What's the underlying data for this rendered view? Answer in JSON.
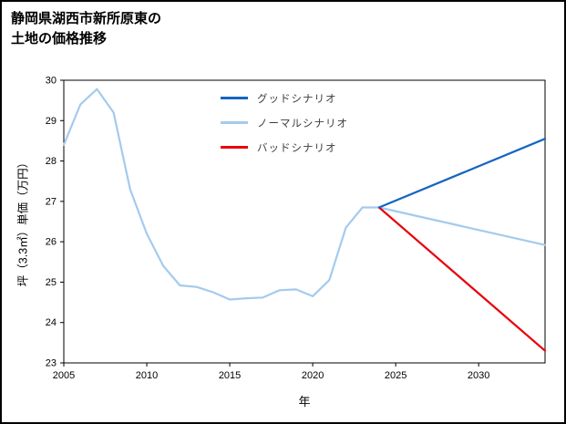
{
  "page": {
    "title_line1": "静岡県湖西市新所原東の",
    "title_line2": "土地の価格推移"
  },
  "chart_data": {
    "type": "line",
    "title": "静岡県湖西市新所原東の土地の価格推移",
    "xlabel": "年",
    "ylabel": "坪（3.3㎡）単価（万円）",
    "xlim": [
      2005,
      2034
    ],
    "ylim": [
      23,
      30
    ],
    "x_ticks": [
      2005,
      2010,
      2015,
      2020,
      2025,
      2030
    ],
    "y_ticks": [
      23,
      24,
      25,
      26,
      27,
      28,
      29,
      30
    ],
    "grid": false,
    "legend_position": "upper center, no frame",
    "legend": [
      {
        "label": "グッドシナリオ",
        "color": "#1565c0"
      },
      {
        "label": "ノーマルシナリオ",
        "color": "#a4cbed"
      },
      {
        "label": "バッドシナリオ",
        "color": "#e8000b"
      }
    ],
    "series": [
      {
        "name": "history",
        "legend": "ノーマルシナリオ",
        "color": "#a4cbed",
        "x": [
          2005,
          2006,
          2007,
          2008,
          2009,
          2010,
          2011,
          2012,
          2013,
          2014,
          2015,
          2016,
          2017,
          2018,
          2019,
          2020,
          2021,
          2022,
          2023,
          2024
        ],
        "y": [
          28.4,
          29.4,
          29.78,
          29.2,
          27.3,
          26.2,
          25.4,
          24.92,
          24.88,
          24.75,
          24.57,
          24.6,
          24.62,
          24.8,
          24.82,
          24.65,
          25.05,
          26.35,
          26.85,
          26.85
        ]
      },
      {
        "name": "normal-forecast",
        "legend": "ノーマルシナリオ",
        "color": "#a4cbed",
        "x": [
          2024,
          2034
        ],
        "y": [
          26.85,
          25.92
        ]
      },
      {
        "name": "bad-forecast",
        "legend": "バッドシナリオ",
        "color": "#e8000b",
        "x": [
          2024,
          2034
        ],
        "y": [
          26.85,
          23.3
        ]
      },
      {
        "name": "good-forecast",
        "legend": "グッドシナリオ",
        "color": "#1565c0",
        "x": [
          2024,
          2034
        ],
        "y": [
          26.85,
          28.55
        ]
      }
    ]
  }
}
